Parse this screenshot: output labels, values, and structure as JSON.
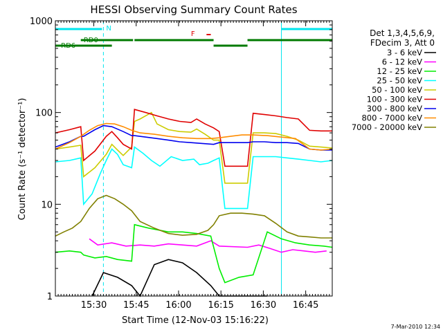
{
  "chart_data": {
    "type": "line",
    "title": "HESSI Observing Summary Count Rates",
    "xlabel": "Start Time (12-Nov-03 15:16:22)",
    "ylabel": "Count Rate (s⁻¹ detector⁻¹)",
    "y_scale": "log",
    "ylim": [
      1,
      1000
    ],
    "xlim_minutes_after_start": [
      0,
      98
    ],
    "y_ticks": [
      "1",
      "10",
      "100",
      "1000"
    ],
    "x_ticks": [
      {
        "label": "15:30",
        "minute": 13.6
      },
      {
        "label": "15:45",
        "minute": 28.6
      },
      {
        "label": "16:00",
        "minute": 43.6
      },
      {
        "label": "16:15",
        "minute": 58.6
      },
      {
        "label": "16:30",
        "minute": 73.6
      },
      {
        "label": "16:45",
        "minute": 88.6
      }
    ],
    "legend_title": [
      "Det 1,3,4,5,6,9,",
      "FDecim 3, Att 0"
    ],
    "legend_placement": "right",
    "footer_date": "7-Mar-2010 12:34",
    "flag_labels": {
      "N": "N",
      "F": "F",
      "RD0": "RD0",
      "RD6": "RD6"
    },
    "vertical_lines_minute": {
      "solid": [
        0,
        80
      ],
      "dashed": [
        17,
        98
      ]
    },
    "flag_segments": {
      "N": {
        "color": "#00e5ee",
        "segments": [
          [
            0,
            16.5
          ],
          [
            80,
            98
          ]
        ]
      },
      "F": {
        "color": "#e00000",
        "segments": [
          [
            53.5,
            55
          ]
        ]
      },
      "RD0": {
        "color": "#007a00",
        "segments": [
          [
            9,
            27.5
          ]
        ]
      },
      "RD0_hi": {
        "color": "#007a00",
        "segments": [
          [
            28,
            56
          ],
          [
            68,
            98
          ]
        ]
      },
      "RD6": {
        "color": "#007a00",
        "segments": [
          [
            0,
            20
          ]
        ]
      },
      "RD6_lo": {
        "color": "#007a00",
        "segments": [
          [
            56,
            68
          ]
        ]
      }
    },
    "series": [
      {
        "name": "3 - 6 keV",
        "color": "#000000",
        "x": [
          13,
          17,
          22,
          27,
          30,
          35,
          40,
          45,
          50,
          55,
          58,
          60,
          65,
          70,
          75
        ],
        "y": [
          1.0,
          1.8,
          1.6,
          1.3,
          1.0,
          2.2,
          2.5,
          2.3,
          1.8,
          1.3,
          1.0,
          1.0,
          1.0,
          1.0,
          1.0
        ]
      },
      {
        "name": "6 - 12 keV",
        "color": "#ff00ff",
        "x": [
          12,
          15,
          20,
          25,
          30,
          35,
          40,
          45,
          50,
          55,
          58,
          68,
          72,
          76,
          80,
          84,
          88,
          92,
          96
        ],
        "y": [
          4.2,
          3.6,
          3.8,
          3.5,
          3.6,
          3.5,
          3.7,
          3.6,
          3.5,
          4.0,
          3.5,
          3.4,
          3.6,
          3.3,
          3.0,
          3.2,
          3.1,
          3.0,
          3.1
        ]
      },
      {
        "name": "12 - 25 keV",
        "color": "#00ee00",
        "x": [
          0,
          5,
          9,
          10,
          14,
          18,
          22,
          27,
          28,
          33,
          40,
          45,
          50,
          55,
          58,
          60,
          65,
          70,
          75,
          80,
          85,
          90,
          95,
          98
        ],
        "y": [
          3.0,
          3.1,
          3.0,
          2.8,
          2.6,
          2.7,
          2.5,
          2.4,
          6.0,
          5.5,
          5.0,
          5.0,
          4.8,
          4.5,
          2.0,
          1.4,
          1.6,
          1.7,
          5.0,
          4.2,
          3.8,
          3.6,
          3.5,
          3.4
        ]
      },
      {
        "name": "25 - 50 keV",
        "color": "#00ffff",
        "x": [
          0,
          5,
          9,
          10,
          13,
          16,
          18,
          20,
          22,
          24,
          27,
          28,
          31,
          34,
          37,
          41,
          45,
          49,
          51,
          54,
          56,
          58,
          60,
          64,
          68,
          70,
          74,
          78,
          82,
          86,
          90,
          94,
          98
        ],
        "y": [
          29,
          30,
          32,
          10,
          13,
          22,
          30,
          40,
          35,
          27,
          25,
          42,
          36,
          30,
          26,
          33,
          30,
          31,
          27,
          28,
          30,
          32,
          9,
          9,
          9,
          33,
          33,
          33,
          32,
          31,
          30,
          29,
          30
        ]
      },
      {
        "name": "50 - 100 keV",
        "color": "#cccc00",
        "x": [
          0,
          5,
          9,
          10,
          14,
          18,
          20,
          22,
          24,
          27,
          28,
          30,
          34,
          36,
          40,
          44,
          48,
          50,
          53,
          56,
          58,
          60,
          64,
          68,
          70,
          74,
          78,
          82,
          86,
          90,
          94,
          98
        ],
        "y": [
          40,
          42,
          44,
          20,
          25,
          35,
          45,
          39,
          34,
          42,
          80,
          85,
          100,
          75,
          65,
          62,
          61,
          66,
          58,
          50,
          50,
          17,
          17,
          17,
          60,
          60,
          59,
          55,
          50,
          43,
          42,
          41
        ]
      },
      {
        "name": "100 - 300 keV",
        "color": "#e00000",
        "x": [
          0,
          5,
          9,
          10,
          14,
          18,
          20,
          22,
          24,
          27,
          28,
          32,
          36,
          40,
          44,
          48,
          50,
          53,
          56,
          58,
          60,
          64,
          68,
          70,
          74,
          78,
          82,
          86,
          90,
          94,
          98
        ],
        "y": [
          60,
          65,
          70,
          30,
          38,
          55,
          62,
          53,
          45,
          40,
          108,
          100,
          92,
          85,
          80,
          78,
          85,
          75,
          68,
          62,
          26,
          26,
          26,
          98,
          95,
          92,
          88,
          85,
          64,
          63,
          63
        ]
      },
      {
        "name": "300 - 800 keV",
        "color": "#0000ee",
        "x": [
          0,
          5,
          9,
          10,
          14,
          17,
          20,
          24,
          27,
          28,
          32,
          36,
          40,
          44,
          48,
          52,
          56,
          58,
          60,
          64,
          68,
          70,
          74,
          78,
          82,
          86,
          90,
          94,
          98
        ],
        "y": [
          42,
          48,
          55,
          55,
          65,
          72,
          70,
          62,
          56,
          56,
          54,
          52,
          50,
          48,
          47,
          46,
          45,
          47,
          47,
          47,
          47,
          48,
          48,
          47,
          47,
          46,
          40,
          39,
          39
        ]
      },
      {
        "name": "800 - 7000 keV",
        "color": "#ff8c00",
        "x": [
          0,
          5,
          9,
          12,
          15,
          18,
          21,
          24,
          27,
          30,
          35,
          40,
          45,
          50,
          55,
          58,
          62,
          66,
          70,
          75,
          80,
          85,
          90,
          94,
          98
        ],
        "y": [
          40,
          47,
          55,
          64,
          72,
          76,
          75,
          70,
          64,
          60,
          58,
          55,
          53,
          52,
          52,
          53,
          55,
          57,
          57,
          56,
          54,
          52,
          40,
          39,
          40
        ]
      },
      {
        "name": "7000 - 20000 keV",
        "color": "#808000",
        "x": [
          0,
          3,
          6,
          9,
          12,
          15,
          18,
          21,
          24,
          27,
          30,
          35,
          40,
          45,
          50,
          54,
          56,
          58,
          62,
          66,
          70,
          74,
          78,
          82,
          86,
          90,
          94,
          98
        ],
        "y": [
          4.5,
          5.0,
          5.5,
          6.5,
          9.0,
          11.5,
          12.5,
          11.5,
          10.0,
          8.5,
          6.5,
          5.5,
          4.8,
          4.6,
          4.7,
          5.2,
          6.0,
          7.5,
          8.0,
          8.0,
          7.8,
          7.5,
          6.2,
          5.0,
          4.5,
          4.4,
          4.3,
          4.3
        ]
      }
    ]
  }
}
